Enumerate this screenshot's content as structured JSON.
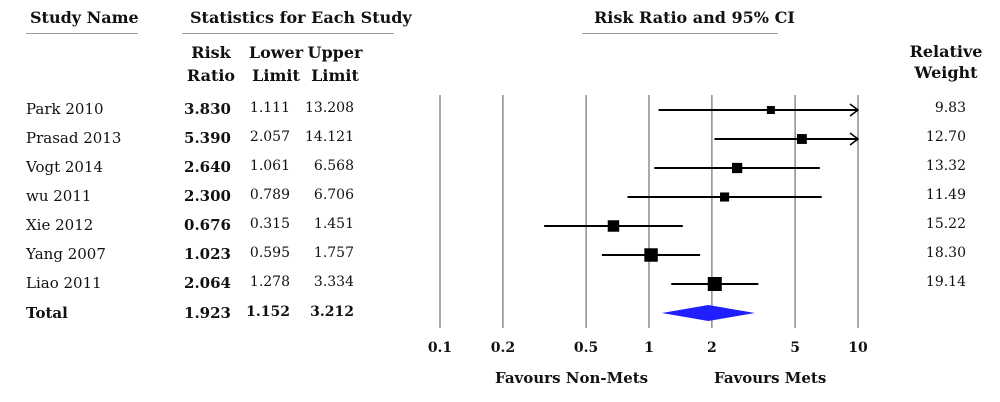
{
  "headers": {
    "study_name": "Study Name",
    "statistics": "Statistics for Each Study",
    "plot_title": "Risk Ratio and 95% CI",
    "risk_ratio": [
      "Risk",
      "Ratio"
    ],
    "lower_limit": [
      "Lower",
      "Limit"
    ],
    "upper_limit": [
      "Upper",
      "Limit"
    ],
    "relative_weight": [
      "Relative",
      "Weight"
    ]
  },
  "studies": [
    {
      "name": "Park 2010",
      "rr": "3.830",
      "lower": "1.111",
      "upper": "13.208",
      "weight": "9.83"
    },
    {
      "name": "Prasad 2013",
      "rr": "5.390",
      "lower": "2.057",
      "upper": "14.121",
      "weight": "12.70"
    },
    {
      "name": "Vogt 2014",
      "rr": "2.640",
      "lower": "1.061",
      "upper": "6.568",
      "weight": "13.32"
    },
    {
      "name": "wu 2011",
      "rr": "2.300",
      "lower": "0.789",
      "upper": "6.706",
      "weight": "11.49"
    },
    {
      "name": "Xie 2012",
      "rr": "0.676",
      "lower": "0.315",
      "upper": "1.451",
      "weight": "15.22"
    },
    {
      "name": "Yang 2007",
      "rr": "1.023",
      "lower": "0.595",
      "upper": "1.757",
      "weight": "18.30"
    },
    {
      "name": "Liao 2011",
      "rr": "2.064",
      "lower": "1.278",
      "upper": "3.334",
      "weight": "19.14"
    }
  ],
  "total": {
    "name": "Total",
    "rr": "1.923",
    "lower": "1.152",
    "upper": "3.212"
  },
  "favours": {
    "left": "Favours Non-Mets",
    "right": "Favours Mets"
  },
  "colors": {
    "marker": "#000000",
    "diamond": "#1f1fff",
    "grid": "#555555",
    "rule": "#9a9a9a"
  },
  "chart_data": {
    "type": "forest",
    "x_scale": "log",
    "xlim": [
      0.1,
      10
    ],
    "ticks": [
      0.1,
      0.2,
      0.5,
      1,
      2,
      5,
      10
    ],
    "tick_labels": [
      "0.1",
      "0.2",
      "0.5",
      "1",
      "2",
      "5",
      "10"
    ],
    "title": "Risk Ratio and 95% CI",
    "studies": [
      {
        "name": "Park 2010",
        "rr": 3.83,
        "lower": 1.111,
        "upper": 13.208,
        "weight": 9.83
      },
      {
        "name": "Prasad 2013",
        "rr": 5.39,
        "lower": 2.057,
        "upper": 14.121,
        "weight": 12.7
      },
      {
        "name": "Vogt 2014",
        "rr": 2.64,
        "lower": 1.061,
        "upper": 6.568,
        "weight": 13.32
      },
      {
        "name": "wu 2011",
        "rr": 2.3,
        "lower": 0.789,
        "upper": 6.706,
        "weight": 11.49
      },
      {
        "name": "Xie 2012",
        "rr": 0.676,
        "lower": 0.315,
        "upper": 1.451,
        "weight": 15.22
      },
      {
        "name": "Yang 2007",
        "rr": 1.023,
        "lower": 0.595,
        "upper": 1.757,
        "weight": 18.3
      },
      {
        "name": "Liao 2011",
        "rr": 2.064,
        "lower": 1.278,
        "upper": 3.334,
        "weight": 19.14
      }
    ],
    "total": {
      "rr": 1.923,
      "lower": 1.152,
      "upper": 3.212
    }
  }
}
